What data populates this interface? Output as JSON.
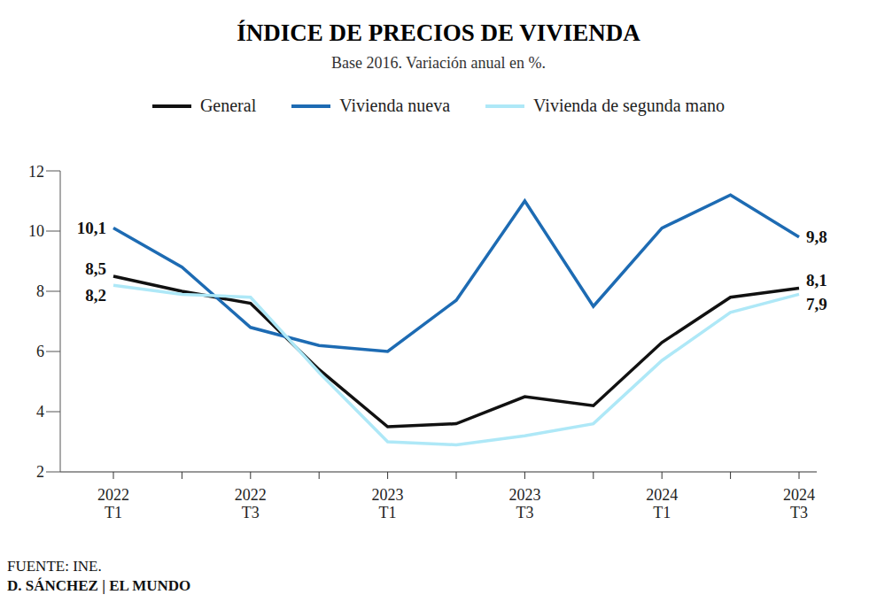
{
  "chart_data": {
    "type": "line",
    "title": "ÍNDICE DE PRECIOS DE VIVIENDA",
    "subtitle": "Base 2016. Variación anual en %.",
    "categories": [
      "2022 T1",
      null,
      "2022 T3",
      null,
      "2023 T1",
      null,
      "2023 T3",
      null,
      "2024 T1",
      null,
      "2024 T3"
    ],
    "series": [
      {
        "name": "General",
        "color": "#111111",
        "values": [
          8.5,
          8.0,
          7.6,
          5.4,
          3.5,
          3.6,
          4.5,
          4.2,
          6.3,
          7.8,
          8.1
        ],
        "value_labels": [
          "8,5",
          null,
          null,
          null,
          null,
          null,
          null,
          null,
          null,
          null,
          "8,1"
        ]
      },
      {
        "name": "Vivienda nueva",
        "color": "#1d6bb3",
        "values": [
          10.1,
          8.8,
          6.8,
          6.2,
          6.0,
          7.7,
          11.0,
          7.5,
          10.1,
          11.2,
          9.8
        ],
        "value_labels": [
          "10,1",
          null,
          null,
          null,
          null,
          null,
          null,
          null,
          null,
          null,
          "9,8"
        ]
      },
      {
        "name": "Vivienda de segunda mano",
        "color": "#aee8f7",
        "values": [
          8.2,
          7.9,
          7.8,
          5.3,
          3.0,
          2.9,
          3.2,
          3.6,
          5.7,
          7.3,
          7.9
        ],
        "value_labels": [
          "8,2",
          null,
          null,
          null,
          null,
          null,
          null,
          null,
          null,
          null,
          "7,9"
        ]
      }
    ],
    "ylim": [
      2,
      12
    ],
    "yticks": [
      2,
      4,
      6,
      8,
      10,
      12
    ],
    "grid": false,
    "legend": "top",
    "data_labels": true,
    "source": "FUENTE: INE.",
    "credit": "D. SÁNCHEZ | EL MUNDO"
  }
}
